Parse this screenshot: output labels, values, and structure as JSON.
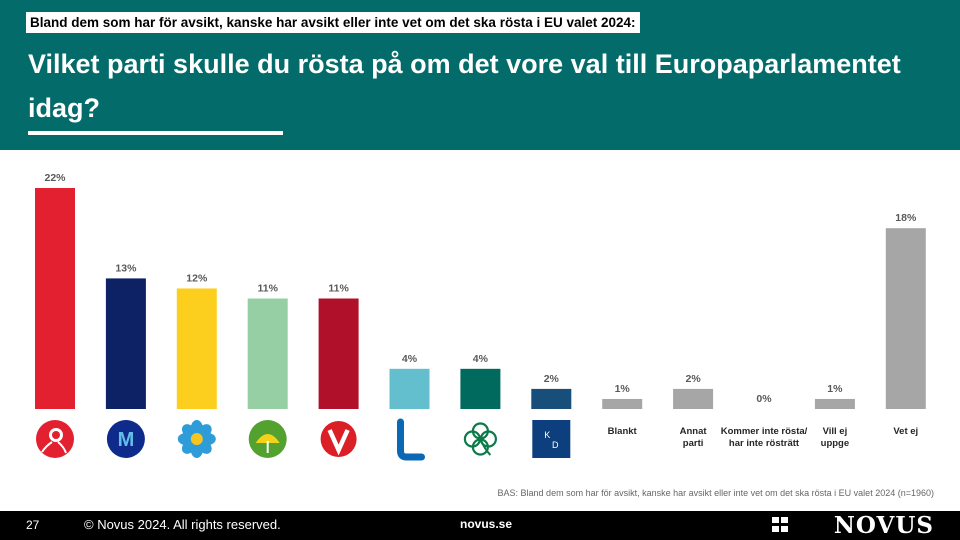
{
  "header": {
    "subtitle": "Bland  dem som har för avsikt, kanske har avsikt eller inte vet om det ska rösta i EU valet 2024:",
    "title": "Vilket parti skulle du rösta på om det vore val till Europaparlamentet idag?"
  },
  "chart_data": {
    "type": "bar",
    "title": "Vilket parti skulle du rösta på om det vore val till Europaparlamentet idag?",
    "categories": [
      "S",
      "M",
      "SD",
      "MP",
      "V",
      "L",
      "C",
      "KD",
      "Blankt",
      "Annat parti",
      "Kommer inte rösta/ har inte rösträtt",
      "Vill ej uppge",
      "Vet ej"
    ],
    "values": [
      22,
      13,
      12,
      11,
      11,
      4,
      4,
      2,
      1,
      2,
      0,
      1,
      18
    ],
    "value_labels": [
      "22%",
      "13%",
      "12%",
      "11%",
      "11%",
      "4%",
      "4%",
      "2%",
      "1%",
      "2%",
      "0%",
      "1%",
      "18%"
    ],
    "colors": [
      "#e3202f",
      "#0c2264",
      "#fccf1f",
      "#96cfa3",
      "#b0102a",
      "#63bfce",
      "#006a5f",
      "#174f7a",
      "#a6a6a6",
      "#a6a6a6",
      "#a6a6a6",
      "#a6a6a6",
      "#a6a6a6"
    ],
    "category_labels_shown": [
      "",
      "",
      "",
      "",
      "",
      "",
      "",
      "",
      "Blankt",
      "Annat parti",
      "Kommer inte rösta/ har inte rösträtt",
      "Vill ej uppge",
      "Vet ej"
    ],
    "logo_icons": [
      "s-rose-icon",
      "m-moderaterna-icon",
      "sd-anemone-icon",
      "mp-dandelion-icon",
      "v-vansterpartiet-icon",
      "l-liberalerna-icon",
      "c-clover-icon",
      "kd-icon"
    ],
    "ylim": [
      0,
      22
    ],
    "xlabel": "",
    "ylabel": "",
    "grid": false,
    "legend": "none"
  },
  "footnote": "BAS: Bland dem som har för avsikt, kanske har avsikt eller inte vet om det ska rösta i EU valet 2024 (n=1960)",
  "footer": {
    "page_number": "27",
    "copyright": "© Novus 2024. All rights reserved.",
    "site": "novus.se",
    "brand": "NOVUS"
  }
}
